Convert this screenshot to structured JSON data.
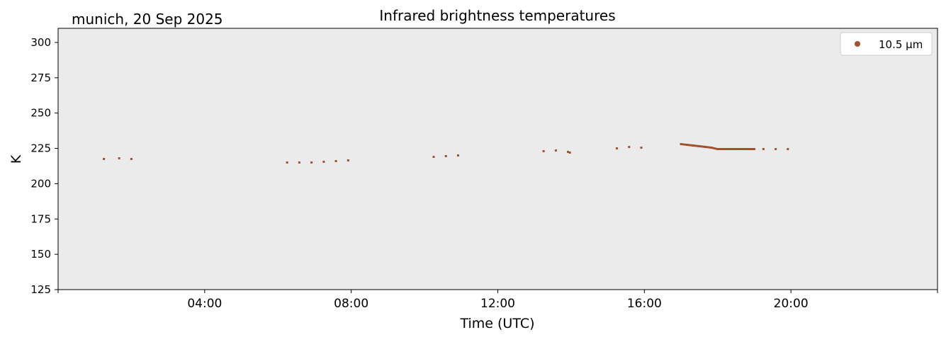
{
  "chart_data": {
    "type": "scatter",
    "title": "Infrared brightness temperatures",
    "subtitle": "munich, 20 Sep 2025",
    "xlabel": "Time (UTC)",
    "ylabel": "K",
    "xlim": [
      "00:00",
      "24:00"
    ],
    "ylim": [
      125,
      310
    ],
    "yticks": [
      125,
      150,
      175,
      200,
      225,
      250,
      275,
      300
    ],
    "xticks": [
      "04:00",
      "08:00",
      "12:00",
      "16:00",
      "20:00"
    ],
    "grid": false,
    "legend_position": "top-right",
    "series": [
      {
        "name": "10.5 µm",
        "color": "#a0522d",
        "x": [
          "01:15",
          "01:40",
          "02:00",
          "06:15",
          "06:35",
          "06:55",
          "07:15",
          "07:35",
          "07:55",
          "10:15",
          "10:35",
          "10:55",
          "13:15",
          "13:35",
          "13:55",
          "13:58",
          "15:15",
          "15:35",
          "15:55",
          "17:00",
          "17:10",
          "17:20",
          "17:30",
          "17:40",
          "17:50",
          "18:00",
          "18:15",
          "18:30",
          "18:45",
          "19:00",
          "19:15",
          "19:35",
          "19:55"
        ],
        "y": [
          217.5,
          218,
          217.5,
          215,
          215,
          215,
          215.5,
          216,
          216.5,
          219,
          219.5,
          220,
          223,
          223.5,
          222.5,
          222,
          225,
          226,
          225.5,
          228,
          227.5,
          227,
          226.5,
          226,
          225.5,
          224.5,
          224.5,
          224.5,
          224.5,
          224.5,
          224.5,
          224.5,
          224.5
        ]
      }
    ]
  }
}
